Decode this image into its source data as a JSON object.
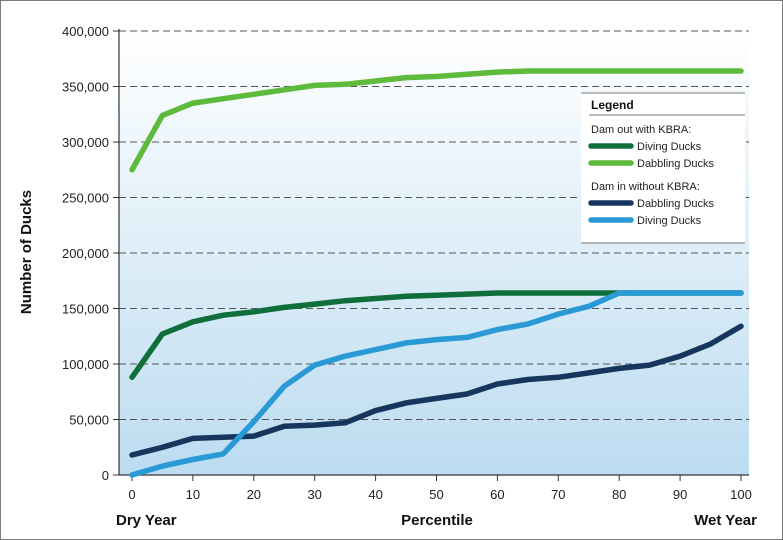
{
  "chart_data": {
    "type": "line",
    "xlabel": "Percentile",
    "xlabel_left": "Dry Year",
    "xlabel_right": "Wet Year",
    "ylabel": "Number of Ducks",
    "xlim": [
      0,
      100
    ],
    "ylim": [
      0,
      400000
    ],
    "x_ticks": [
      0,
      10,
      20,
      30,
      40,
      50,
      60,
      70,
      80,
      90,
      100
    ],
    "y_ticks": [
      0,
      50000,
      100000,
      150000,
      200000,
      250000,
      300000,
      350000,
      400000
    ],
    "y_tick_labels": [
      "0",
      "50,000",
      "100,000",
      "150,000",
      "200,000",
      "250,000",
      "300,000",
      "350,000",
      "400,000"
    ],
    "grid": "horizontal dashed",
    "legend": {
      "title": "Legend",
      "placement": "right",
      "groups": [
        {
          "heading": "Dam out with KBRA:",
          "entries": [
            "Diving Ducks",
            "Dabbling Ducks"
          ]
        },
        {
          "heading": "Dam in without KBRA:",
          "entries": [
            "Dabbling Ducks",
            "Diving Ducks"
          ]
        }
      ]
    },
    "x": [
      0,
      5,
      10,
      15,
      20,
      25,
      30,
      35,
      40,
      45,
      50,
      55,
      60,
      65,
      70,
      75,
      80,
      85,
      90,
      95,
      100
    ],
    "series": [
      {
        "name": "Diving Ducks",
        "group": "Dam out with KBRA:",
        "color": "#0f6e3a",
        "values": [
          88000,
          127000,
          138000,
          144000,
          147000,
          151000,
          154000,
          157000,
          159000,
          161000,
          162000,
          163000,
          164000,
          164000,
          164000,
          164000,
          164000,
          164000,
          164000,
          164000,
          164000
        ]
      },
      {
        "name": "Dabbling Ducks",
        "group": "Dam out with KBRA:",
        "color": "#5dba3a",
        "values": [
          275000,
          324000,
          335000,
          339000,
          343000,
          347000,
          351000,
          352000,
          355000,
          358000,
          359000,
          361000,
          363000,
          364000,
          364000,
          364000,
          364000,
          364000,
          364000,
          364000,
          364000
        ]
      },
      {
        "name": "Dabbling Ducks",
        "group": "Dam in without KBRA:",
        "color": "#17365d",
        "values": [
          18000,
          25000,
          33000,
          34000,
          35000,
          44000,
          45000,
          47000,
          58000,
          65000,
          69000,
          73000,
          82000,
          86000,
          88000,
          92000,
          96000,
          99000,
          107000,
          118000,
          134000
        ]
      },
      {
        "name": "Diving Ducks",
        "group": "Dam in without KBRA:",
        "color": "#2a9ad6",
        "values": [
          0,
          8000,
          14000,
          19000,
          48000,
          80000,
          99000,
          107000,
          113000,
          119000,
          122000,
          124000,
          131000,
          136000,
          145000,
          152000,
          164000,
          164000,
          164000,
          164000,
          164000
        ]
      }
    ]
  }
}
